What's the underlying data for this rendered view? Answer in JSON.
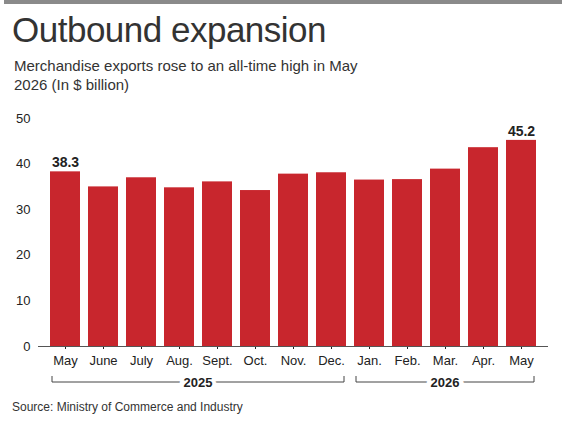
{
  "chart_data": {
    "type": "bar",
    "title": "Outbound expansion",
    "subtitle": "Merchandise exports rose to an all-time high in May 2026 (In $ billion)",
    "source": "Source: Ministry of Commerce and Industry",
    "categories": [
      "May",
      "June",
      "July",
      "Aug.",
      "Sept.",
      "Oct.",
      "Nov.",
      "Dec.",
      "Jan.",
      "Feb.",
      "Mar.",
      "Apr.",
      "May"
    ],
    "values": [
      38.3,
      35.0,
      37.0,
      34.8,
      36.1,
      34.2,
      37.8,
      38.1,
      36.5,
      36.6,
      38.9,
      43.6,
      45.2
    ],
    "value_labels": [
      "38.3",
      null,
      null,
      null,
      null,
      null,
      null,
      null,
      null,
      null,
      null,
      null,
      "45.2"
    ],
    "data_labels": true,
    "color": "#c8262d",
    "ylim": [
      0,
      50
    ],
    "yticks": [
      0,
      10,
      20,
      30,
      40,
      50
    ],
    "grid": false,
    "x_groups": [
      {
        "label": "2025",
        "start": 0,
        "end": 7
      },
      {
        "label": "2026",
        "start": 8,
        "end": 12
      }
    ]
  }
}
